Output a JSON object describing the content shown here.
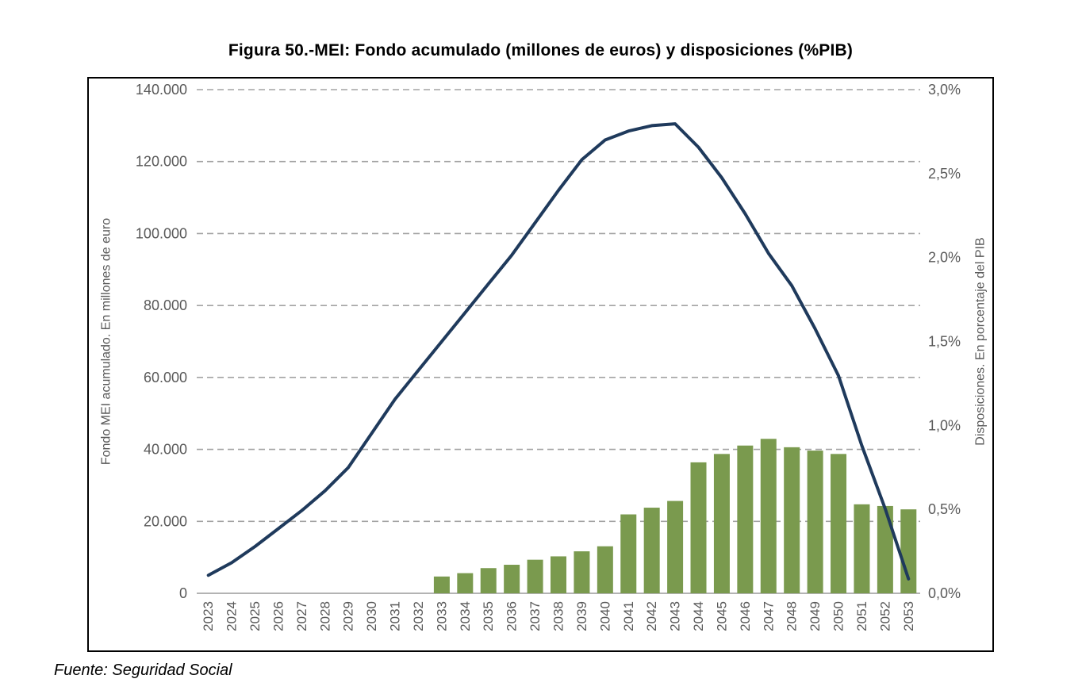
{
  "title": "Figura 50.-MEI: Fondo acumulado (millones de euros) y disposiciones (%PIB)",
  "source": "Fuente: Seguridad Social",
  "chart_data": {
    "type": "bar",
    "subtype": "combo-bar-line",
    "title": "Figura 50.-MEI: Fondo acumulado (millones de euros) y disposiciones (%PIB)",
    "categories": [
      "2023",
      "2024",
      "2025",
      "2026",
      "2027",
      "2028",
      "2029",
      "2030",
      "2031",
      "2032",
      "2033",
      "2034",
      "2035",
      "2036",
      "2037",
      "2038",
      "2039",
      "2040",
      "2041",
      "2042",
      "2043",
      "2044",
      "2045",
      "2046",
      "2047",
      "2048",
      "2049",
      "2050",
      "2051",
      "2052",
      "2053"
    ],
    "series": [
      {
        "name": "Fondo MEI acumulado. En millones de euro",
        "type": "line",
        "axis": "left",
        "color": "#1f3a5c",
        "values": [
          5000,
          8500,
          13000,
          18000,
          23000,
          28500,
          35000,
          44500,
          54000,
          62000,
          70000,
          78000,
          86000,
          94000,
          103000,
          112000,
          120500,
          126000,
          128500,
          130000,
          130500,
          124000,
          115500,
          105500,
          94500,
          85500,
          73500,
          60500,
          41000,
          23500,
          4000
        ]
      },
      {
        "name": "Disposiciones. En porcentaje del PIB",
        "type": "bar",
        "axis": "right",
        "color": "#7a9a4e",
        "values": [
          null,
          null,
          null,
          null,
          null,
          null,
          null,
          null,
          null,
          null,
          0.1,
          0.12,
          0.15,
          0.17,
          0.2,
          0.22,
          0.25,
          0.28,
          0.47,
          0.51,
          0.55,
          0.78,
          0.83,
          0.88,
          0.92,
          0.87,
          0.85,
          0.83,
          0.53,
          0.52,
          0.5
        ]
      }
    ],
    "left_axis": {
      "title": "Fondo MEI acumulado. En millones de euro",
      "min": 0,
      "max": 140000,
      "tick_step": 20000,
      "tick_labels": [
        "0",
        "20.000",
        "40.000",
        "60.000",
        "80.000",
        "100.000",
        "120.000",
        "140.000"
      ]
    },
    "right_axis": {
      "title": "Disposiciones. En porcentaje del PIB",
      "min": 0,
      "max": 3.0,
      "tick_step": 0.5,
      "tick_labels": [
        "0,0%",
        "0,5%",
        "1,0%",
        "1,5%",
        "2,0%",
        "2,5%",
        "3,0%"
      ]
    },
    "grid": "horizontal-dashed",
    "grid_color": "#a3a3a3",
    "axis_line_color": "#b3b3b3",
    "tick_text_color": "#595959",
    "legend": "none"
  }
}
